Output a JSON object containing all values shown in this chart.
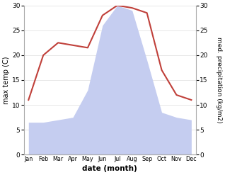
{
  "months": [
    "Jan",
    "Feb",
    "Mar",
    "Apr",
    "May",
    "Jun",
    "Jul",
    "Aug",
    "Sep",
    "Oct",
    "Nov",
    "Dec"
  ],
  "temperature": [
    11,
    20,
    22.5,
    22,
    21.5,
    28,
    30,
    29.5,
    28.5,
    17,
    12,
    11
  ],
  "precipitation": [
    6.5,
    6.5,
    7,
    7.5,
    13,
    26,
    30,
    29,
    19,
    8.5,
    7.5,
    7
  ],
  "temp_color": "#c0403a",
  "precip_fill_color": "#c5cdf0",
  "temp_ylim": [
    0,
    30
  ],
  "precip_ylim": [
    0,
    30
  ],
  "xlabel": "date (month)",
  "ylabel_left": "max temp (C)",
  "ylabel_right": "med. precipitation (kg/m2)",
  "bg_color": "#ffffff",
  "grid_color": "#dddddd",
  "tick_color": "#555555",
  "spine_color": "#aaaaaa"
}
